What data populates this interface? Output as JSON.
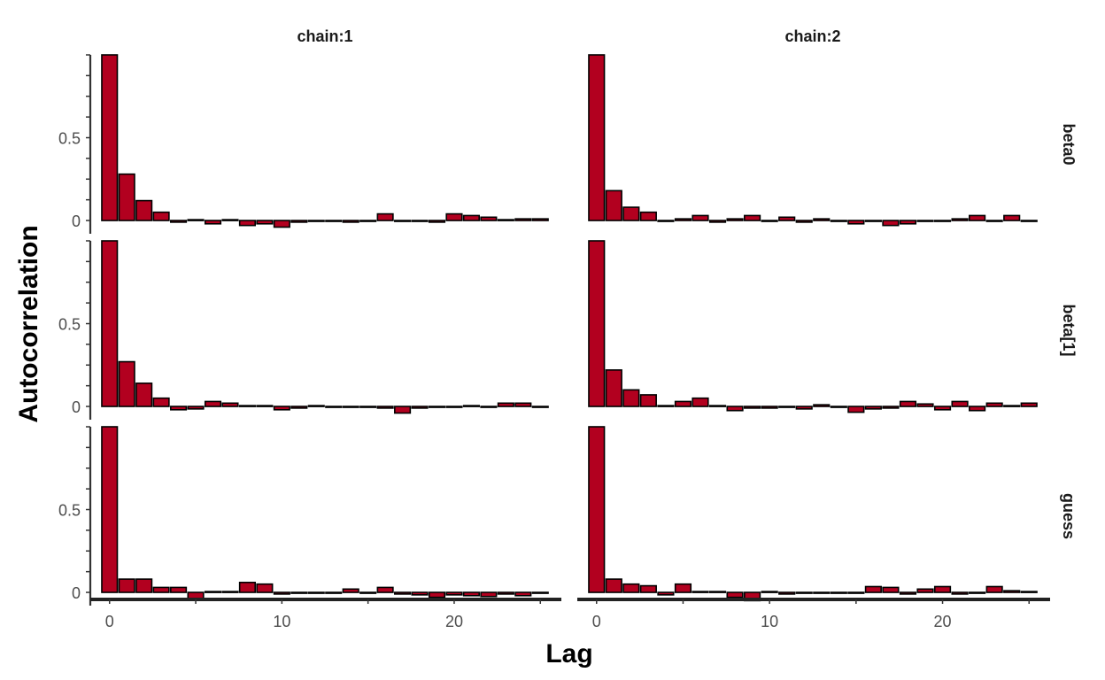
{
  "chart_data": {
    "type": "bar",
    "xlabel": "Lag",
    "ylabel": "Autocorrelation",
    "columns": [
      "chain:1",
      "chain:2"
    ],
    "rows": [
      "beta0",
      "beta[1]",
      "guess"
    ],
    "x_ticks": [
      0,
      10,
      20
    ],
    "y_ticks": [
      0,
      0.5
    ],
    "y_tick_labels": [
      "0",
      "0.5"
    ],
    "xlim": [
      -0.5,
      25.5
    ],
    "ylim": [
      -0.08,
      1.0
    ],
    "lags": [
      0,
      1,
      2,
      3,
      4,
      5,
      6,
      7,
      8,
      9,
      10,
      11,
      12,
      13,
      14,
      15,
      16,
      17,
      18,
      19,
      20,
      21,
      22,
      23,
      24,
      25
    ],
    "bar_fill": "#b2001f",
    "bar_stroke": "#000000",
    "panels": [
      {
        "row": "beta0",
        "column": "chain:1",
        "values": [
          1.0,
          0.28,
          0.12,
          0.05,
          -0.01,
          0.005,
          -0.02,
          0.005,
          -0.03,
          -0.02,
          -0.04,
          -0.01,
          0.0,
          -0.005,
          -0.01,
          0.0,
          0.04,
          0.0,
          -0.005,
          -0.01,
          0.04,
          0.03,
          0.02,
          0.005,
          0.01,
          0.01
        ]
      },
      {
        "row": "beta0",
        "column": "chain:2",
        "values": [
          1.0,
          0.18,
          0.08,
          0.05,
          -0.005,
          0.01,
          0.03,
          -0.01,
          0.01,
          0.03,
          0.0,
          0.02,
          -0.01,
          0.01,
          0.0,
          -0.02,
          -0.005,
          -0.03,
          -0.02,
          0.0,
          -0.005,
          0.01,
          0.03,
          -0.005,
          0.03,
          -0.005
        ]
      },
      {
        "row": "beta[1]",
        "column": "chain:1",
        "values": [
          1.0,
          0.27,
          0.14,
          0.05,
          -0.02,
          -0.015,
          0.03,
          0.02,
          0.005,
          0.005,
          -0.02,
          -0.01,
          0.005,
          0.0,
          0.0,
          -0.005,
          -0.01,
          -0.04,
          -0.01,
          -0.005,
          0.0,
          0.005,
          0.0,
          0.02,
          0.02,
          0.0
        ]
      },
      {
        "row": "beta[1]",
        "column": "chain:2",
        "values": [
          1.0,
          0.22,
          0.1,
          0.07,
          0.005,
          0.03,
          0.05,
          0.005,
          -0.025,
          -0.01,
          -0.01,
          0.0,
          -0.015,
          0.01,
          0.0,
          -0.035,
          -0.015,
          -0.01,
          0.03,
          0.015,
          -0.02,
          0.03,
          -0.025,
          0.02,
          0.005,
          0.02
        ]
      },
      {
        "row": "guess",
        "column": "chain:1",
        "values": [
          1.0,
          0.08,
          0.08,
          0.03,
          0.03,
          -0.04,
          0.005,
          0.005,
          0.06,
          0.05,
          -0.01,
          0.0,
          -0.005,
          -0.005,
          0.02,
          0.0,
          0.03,
          -0.01,
          -0.015,
          -0.03,
          -0.015,
          -0.02,
          -0.025,
          -0.01,
          -0.02,
          0.0
        ]
      },
      {
        "row": "guess",
        "column": "chain:2",
        "values": [
          1.0,
          0.08,
          0.05,
          0.04,
          -0.015,
          0.05,
          0.005,
          0.005,
          -0.03,
          -0.05,
          0.005,
          -0.01,
          0.0,
          0.0,
          0.0,
          -0.005,
          0.035,
          0.03,
          -0.01,
          0.02,
          0.035,
          -0.01,
          0.0,
          0.035,
          0.01,
          0.005
        ]
      }
    ]
  }
}
